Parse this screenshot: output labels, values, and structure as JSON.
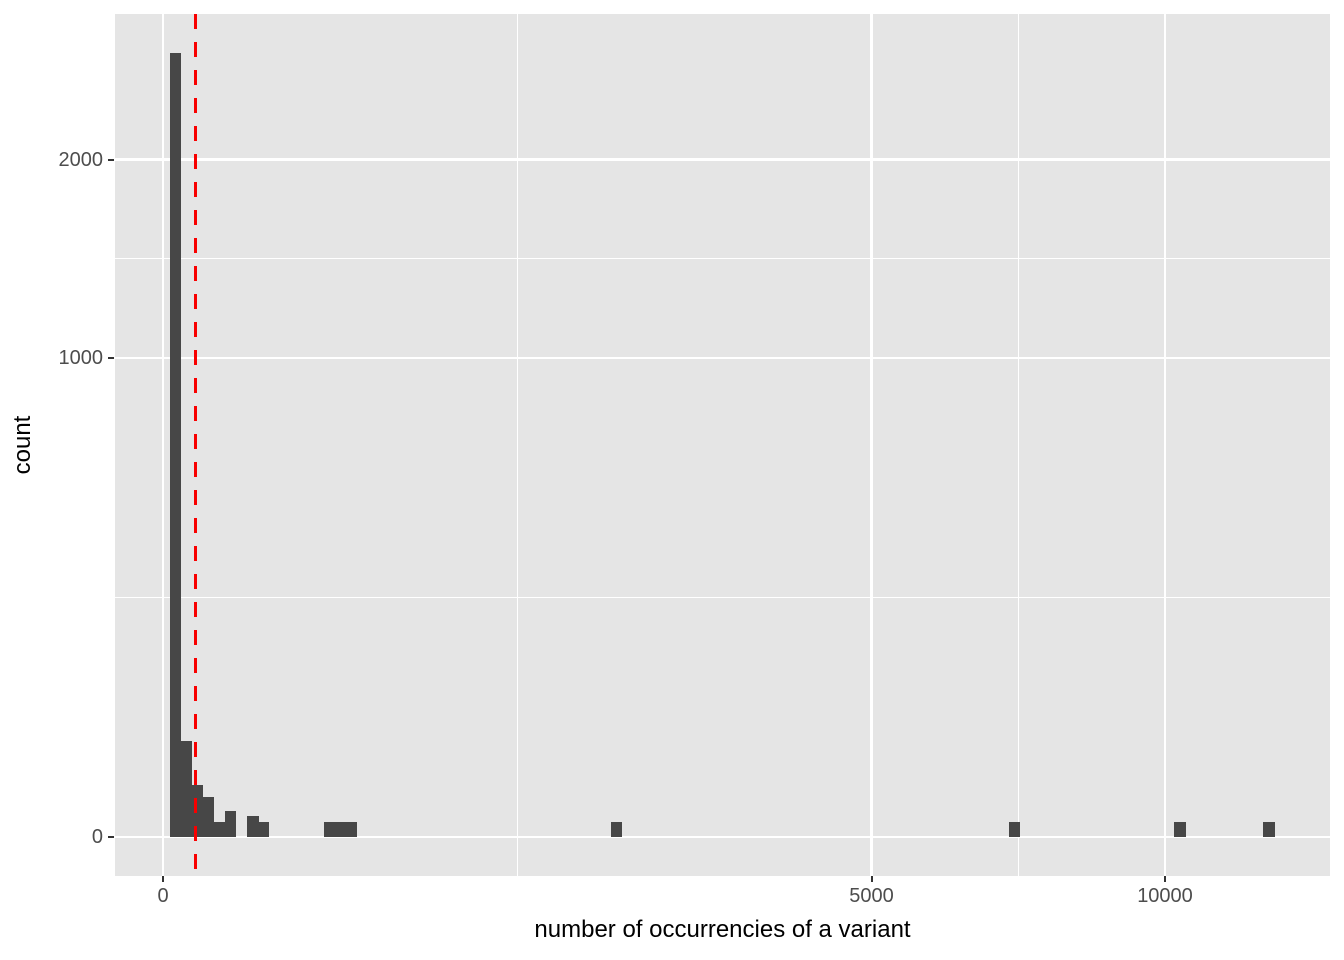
{
  "chart_data": {
    "type": "bar",
    "subtype": "histogram",
    "title": "",
    "xlabel": "number of occurrencies of a variant",
    "ylabel": "count",
    "x_scale": "sqrt",
    "y_scale": "sqrt",
    "xlim": [
      0,
      13600
    ],
    "ylim": [
      0,
      2950
    ],
    "grid": true,
    "legend": "none",
    "x_ticks": [
      {
        "value": 0,
        "label": "0"
      },
      {
        "value": 5000,
        "label": "5000"
      },
      {
        "value": 10000,
        "label": "10000"
      }
    ],
    "y_ticks": [
      {
        "value": 0,
        "label": "0"
      },
      {
        "value": 1000,
        "label": "1000"
      },
      {
        "value": 2000,
        "label": "2000"
      }
    ],
    "x_minor_breaks": [
      1250,
      7286
    ],
    "y_minor_breaks": [
      250,
      1457
    ],
    "bins": [
      {
        "x0": 0.5,
        "x1": 3.2,
        "count": 2680
      },
      {
        "x0": 3.2,
        "x1": 8.4,
        "count": 40
      },
      {
        "x0": 8.4,
        "x1": 15.9,
        "count": 12
      },
      {
        "x0": 15.9,
        "x1": 25.9,
        "count": 7
      },
      {
        "x0": 25.9,
        "x1": 38.3,
        "count": 1
      },
      {
        "x0": 38.3,
        "x1": 53.1,
        "count": 3
      },
      {
        "x0": 70.3,
        "x1": 91.8,
        "count": 2
      },
      {
        "x0": 91.8,
        "x1": 111.9,
        "count": 1
      },
      {
        "x0": 258,
        "x1": 375,
        "count": 1
      },
      {
        "x0": 1999,
        "x1": 2098,
        "count": 1
      },
      {
        "x0": 7129,
        "x1": 7315,
        "count": 1
      },
      {
        "x0": 10180,
        "x1": 10424,
        "count": 1
      },
      {
        "x0": 12052,
        "x1": 12316,
        "count": 1
      }
    ],
    "vline": {
      "x": 10.7,
      "style": "dashed"
    }
  },
  "style": {
    "panel_bg": "#E5E5E5",
    "grid_color": "#FFFFFF",
    "bar_color": "#474747",
    "vline_color": "#F80000",
    "tick_mark_color": "#333333",
    "tick_label_color": "#4D4D4D",
    "axis_title_color": "#000000"
  }
}
